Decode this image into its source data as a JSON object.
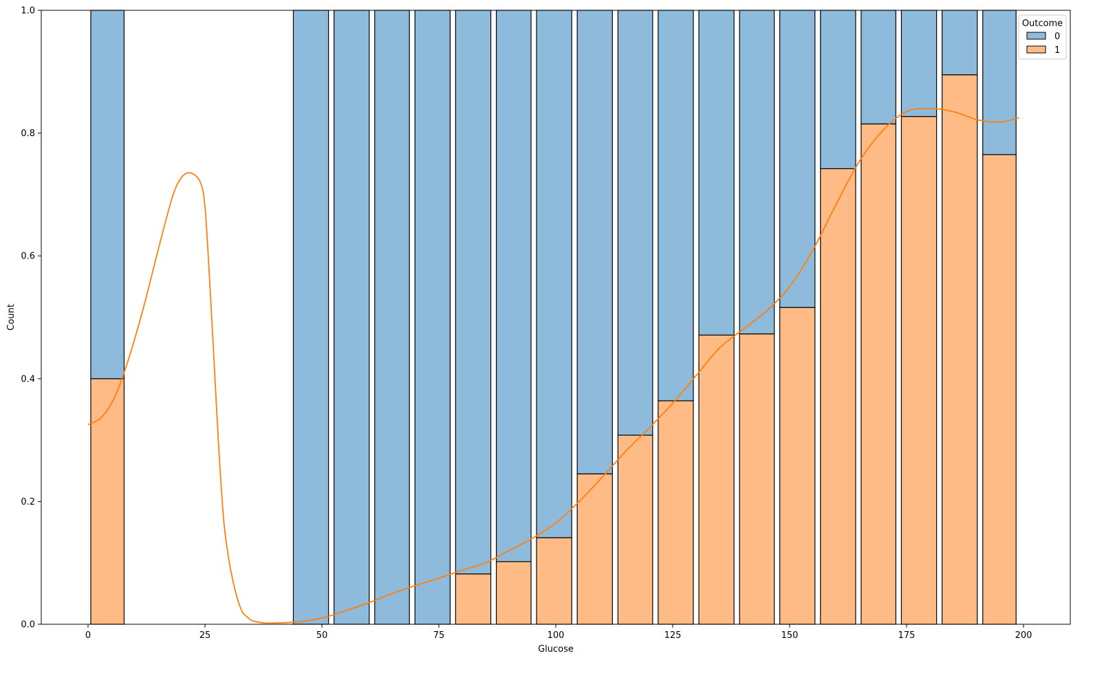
{
  "chart_data": {
    "type": "bar",
    "stacking": "fill",
    "xlabel": "Glucose",
    "ylabel": "Count",
    "xlim": [
      -10,
      210
    ],
    "ylim": [
      0,
      1
    ],
    "xticks": [
      0,
      25,
      50,
      75,
      100,
      125,
      150,
      175,
      200
    ],
    "yticks": [
      0.0,
      0.2,
      0.4,
      0.6,
      0.8,
      1.0
    ],
    "xtick_labels": [
      "0",
      "25",
      "50",
      "75",
      "100",
      "125",
      "150",
      "175",
      "200"
    ],
    "ytick_labels": [
      "0.0",
      "0.2",
      "0.4",
      "0.6",
      "0.8",
      "1.0"
    ],
    "grid": false,
    "legend": {
      "title": "Outcome",
      "placement": "top-right"
    },
    "bins": [
      [
        0.0,
        8.3
      ],
      [
        43.3,
        52.0
      ],
      [
        52.0,
        60.7
      ],
      [
        60.7,
        69.3
      ],
      [
        69.3,
        78.0
      ],
      [
        78.0,
        86.7
      ],
      [
        86.7,
        95.3
      ],
      [
        95.3,
        104.0
      ],
      [
        104.0,
        112.7
      ],
      [
        112.7,
        121.3
      ],
      [
        121.3,
        130.0
      ],
      [
        130.0,
        138.7
      ],
      [
        138.7,
        147.3
      ],
      [
        147.3,
        156.0
      ],
      [
        156.0,
        164.7
      ],
      [
        164.7,
        173.3
      ],
      [
        173.3,
        182.0
      ],
      [
        182.0,
        190.7
      ],
      [
        190.7,
        199.0
      ]
    ],
    "series": [
      {
        "name": "0",
        "color": "#8ebadb",
        "values": [
          0.6,
          1.0,
          1.0,
          1.0,
          1.0,
          0.918,
          0.898,
          0.859,
          0.755,
          0.692,
          0.636,
          0.529,
          0.527,
          0.484,
          0.258,
          0.185,
          0.173,
          0.105,
          0.235
        ]
      },
      {
        "name": "1",
        "color": "#ffbb85",
        "values": [
          0.4,
          0.0,
          0.0,
          0.0,
          0.0,
          0.082,
          0.102,
          0.141,
          0.245,
          0.308,
          0.364,
          0.471,
          0.473,
          0.516,
          0.742,
          0.815,
          0.827,
          0.895,
          0.765
        ]
      }
    ],
    "kde": {
      "series": "1",
      "color": "#ff7f0e",
      "x": [
        0,
        3,
        6,
        9,
        12,
        15,
        18,
        20,
        22,
        24,
        25,
        26,
        27,
        28,
        29,
        30,
        31,
        32,
        33,
        34,
        35,
        36,
        38,
        40,
        45,
        50,
        55,
        60,
        65,
        70,
        75,
        80,
        85,
        90,
        95,
        100,
        105,
        110,
        115,
        120,
        125,
        130,
        135,
        140,
        145,
        150,
        155,
        160,
        165,
        170,
        175,
        180,
        185,
        190,
        195,
        199
      ],
      "y": [
        0.325,
        0.338,
        0.375,
        0.44,
        0.52,
        0.61,
        0.695,
        0.728,
        0.735,
        0.72,
        0.68,
        0.56,
        0.42,
        0.28,
        0.17,
        0.11,
        0.07,
        0.04,
        0.02,
        0.012,
        0.006,
        0.004,
        0.002,
        0.002,
        0.004,
        0.01,
        0.022,
        0.035,
        0.05,
        0.063,
        0.075,
        0.088,
        0.1,
        0.12,
        0.14,
        0.165,
        0.2,
        0.24,
        0.282,
        0.32,
        0.36,
        0.405,
        0.45,
        0.48,
        0.51,
        0.55,
        0.61,
        0.685,
        0.755,
        0.805,
        0.835,
        0.84,
        0.835,
        0.822,
        0.818,
        0.825
      ]
    }
  }
}
